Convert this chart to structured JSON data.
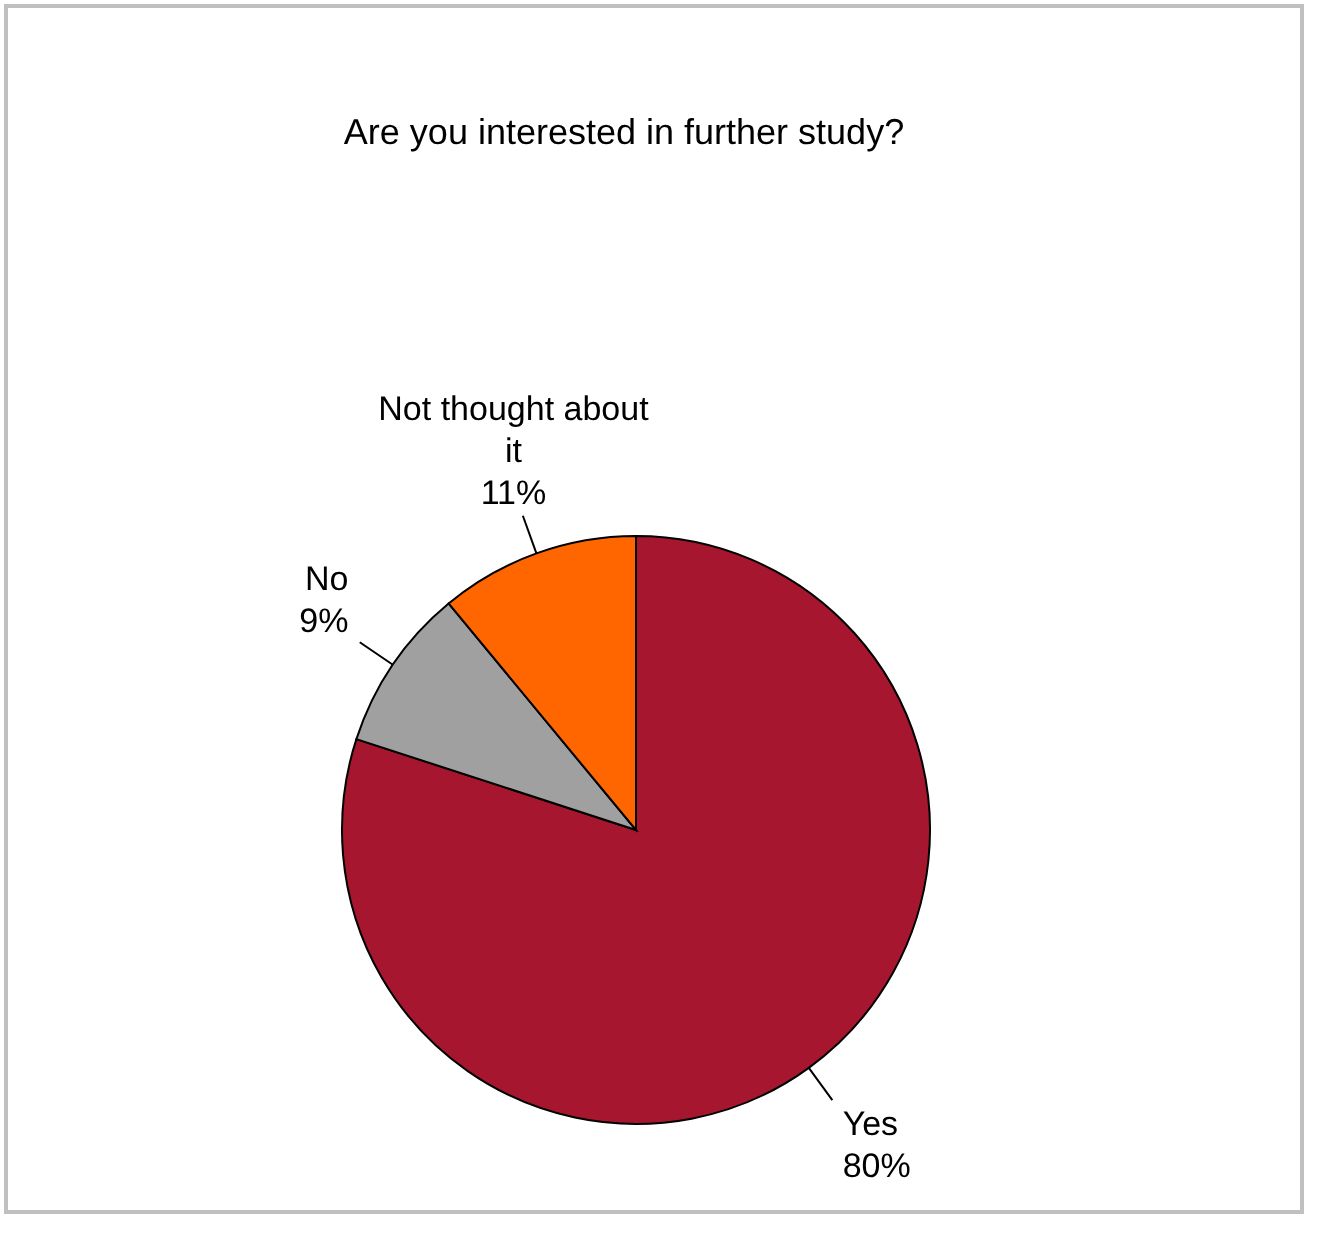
{
  "chart_data": {
    "type": "pie",
    "title": "Are you interested in further study?",
    "categories": [
      "Yes",
      "No",
      "Not thought about it"
    ],
    "values": [
      80,
      9,
      11
    ],
    "value_labels": [
      "80%",
      "9%",
      "11%"
    ],
    "colors": [
      "#a6172f",
      "#a0a0a0",
      "#ff6600"
    ]
  }
}
